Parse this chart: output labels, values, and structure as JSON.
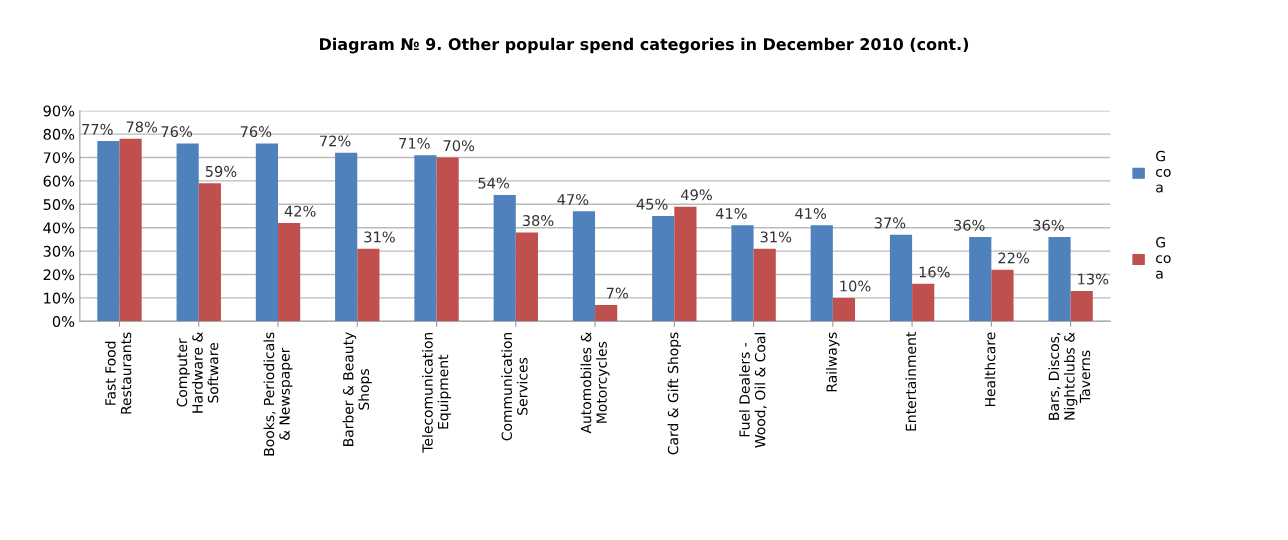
{
  "chart_data": {
    "type": "bar",
    "title": "Diagram № 9. Other popular spend categories in December 2010 (cont.)",
    "categories": [
      "Fast Food\nRestaurants",
      "Computer\nHardware &\nSoftware",
      "Books, Periodicals\n& Newspaper",
      "Barber & Beauty\nShops",
      "Telecomunication\nEquipment",
      "Communication\nServices",
      "Automobiles &\nMotorcycles",
      "Card & Gift Shops",
      "Fuel Dealers -\nWood, Oil & Coal",
      "Railways",
      "Entertainment",
      "Healthcare",
      "Bars, Discos,\nNightclubs &\nTaverns"
    ],
    "series": [
      {
        "name": "G\nco\na",
        "color": "#4f81bd",
        "values": [
          77,
          76,
          76,
          72,
          71,
          54,
          47,
          45,
          41,
          41,
          37,
          36,
          36
        ],
        "value_labels": [
          "77%",
          "76%",
          "76%",
          "72%",
          "71%",
          "54%",
          "47%",
          "45%",
          "41%",
          "41%",
          "37%",
          "36%",
          "36%"
        ]
      },
      {
        "name": "G\nco\na",
        "color": "#c0504d",
        "values": [
          78,
          59,
          42,
          31,
          70,
          38,
          7,
          49,
          31,
          10,
          16,
          22,
          13
        ],
        "value_labels": [
          "78%",
          "59%",
          "42%",
          "31%",
          "70%",
          "38%",
          "7%",
          "49%",
          "31%",
          "10%",
          "16%",
          "22%",
          "13%"
        ]
      }
    ],
    "ylim": [
      0,
      90
    ],
    "yticks": [
      {
        "value": 0,
        "label": "0%"
      },
      {
        "value": 10,
        "label": "10%"
      },
      {
        "value": 20,
        "label": "20%"
      },
      {
        "value": 30,
        "label": "30%"
      },
      {
        "value": 40,
        "label": "40%"
      },
      {
        "value": 50,
        "label": "50%"
      },
      {
        "value": 60,
        "label": "60%"
      },
      {
        "value": 70,
        "label": "70%"
      },
      {
        "value": 80,
        "label": "80%"
      },
      {
        "value": 90,
        "label": "90%"
      }
    ],
    "grid": "y",
    "legend": "right"
  }
}
